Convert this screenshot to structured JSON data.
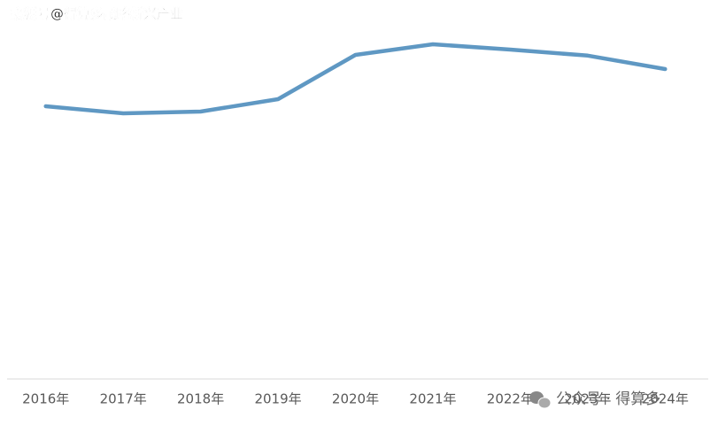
{
  "chart_data": {
    "type": "line",
    "categories": [
      "2016年",
      "2017年",
      "2018年",
      "2019年",
      "2020年",
      "2021年",
      "2022年",
      "2023年",
      "2024年"
    ],
    "series": [
      {
        "color": "#5f98c3",
        "values": [
          77,
          75,
          75.5,
          79,
          91.5,
          94.5,
          93,
          91.3,
          87.5
        ]
      }
    ],
    "ylim": [
      0,
      100
    ],
    "annotations": [
      "搜狐号@得算多战略新兴产业",
      "公众号 · 得算多"
    ]
  }
}
